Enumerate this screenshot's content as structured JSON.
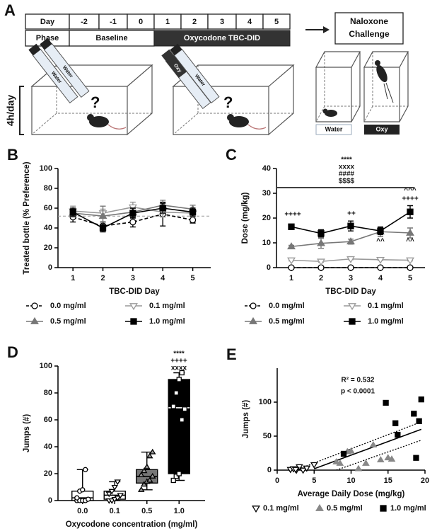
{
  "panel_a": {
    "label": "A",
    "day_header": "Day",
    "phase_header": "Phase",
    "days": [
      "-2",
      "-1",
      "0",
      "1",
      "2",
      "3",
      "4",
      "5"
    ],
    "baseline": "Baseline",
    "treatment": "Oxycodone TBC-DID",
    "challenge": [
      "Naloxone",
      "Challenge"
    ],
    "bottles": [
      "Water",
      "Water",
      "Water",
      "Oxy"
    ],
    "question": "?",
    "duration": "4h/day",
    "groups": [
      "Water",
      "Oxy"
    ]
  },
  "chart_data": [
    {
      "panel": "B",
      "type": "line",
      "y_label": "Treated bottle (% Preference)",
      "x_label": "TBC-DID Day",
      "x": [
        1,
        2,
        3,
        4,
        5
      ],
      "xlim": [
        0.5,
        5.6
      ],
      "xticks": [
        1,
        2,
        3,
        4,
        5
      ],
      "ylim": [
        0,
        100
      ],
      "yticks": [
        0,
        20,
        40,
        60,
        80,
        100
      ],
      "reference_line": 52,
      "series": [
        {
          "name": "0.0 mg/ml",
          "color": "#000000",
          "marker": "circle",
          "fill": "#ffffff",
          "dashed": true,
          "values": [
            51,
            42,
            46,
            54,
            48
          ],
          "errors": [
            5,
            4,
            5,
            12,
            3
          ]
        },
        {
          "name": "0.1 mg/ml",
          "color": "#999999",
          "marker": "tri-down",
          "fill": "#ffffff",
          "dashed": false,
          "values": [
            57,
            55,
            61,
            56,
            55
          ],
          "errors": [
            5,
            4,
            5,
            5,
            4
          ]
        },
        {
          "name": "0.5 mg/ml",
          "color": "#777777",
          "marker": "tri-up",
          "fill": "#777777",
          "dashed": false,
          "values": [
            55,
            52,
            56,
            63,
            59
          ],
          "errors": [
            4,
            10,
            4,
            5,
            4
          ]
        },
        {
          "name": "1.0 mg/ml",
          "color": "#000000",
          "marker": "square",
          "fill": "#000000",
          "dashed": false,
          "values": [
            56,
            40,
            55,
            60,
            56
          ],
          "errors": [
            4,
            4,
            5,
            5,
            4
          ]
        }
      ],
      "annotations": []
    },
    {
      "panel": "C",
      "type": "line",
      "y_label": "Dose (mg/kg)",
      "x_label": "TBC-DID Day",
      "x": [
        1,
        2,
        3,
        4,
        5
      ],
      "xlim": [
        0.5,
        5.5
      ],
      "xticks": [
        1,
        2,
        3,
        4,
        5
      ],
      "ylim": [
        0,
        40
      ],
      "yticks": [
        0,
        10,
        20,
        30,
        40
      ],
      "series": [
        {
          "name": "0.0 mg/ml",
          "color": "#000000",
          "marker": "circle",
          "fill": "#ffffff",
          "dashed": true,
          "values": [
            0,
            0,
            0,
            0,
            0
          ],
          "errors": [
            0,
            0,
            0,
            0,
            0
          ]
        },
        {
          "name": "0.1 mg/ml",
          "color": "#999999",
          "marker": "tri-down",
          "fill": "#ffffff",
          "dashed": false,
          "values": [
            3,
            2.5,
            3.5,
            3.2,
            3
          ],
          "errors": [
            0.3,
            0.3,
            0.3,
            0.3,
            0.3
          ]
        },
        {
          "name": "0.5 mg/ml",
          "color": "#777777",
          "marker": "tri-up",
          "fill": "#777777",
          "dashed": false,
          "values": [
            8.5,
            9.8,
            10.5,
            14.5,
            14
          ],
          "errors": [
            0.5,
            2,
            1,
            2,
            2
          ]
        },
        {
          "name": "1.0 mg/ml",
          "color": "#000000",
          "marker": "square",
          "fill": "#000000",
          "dashed": false,
          "values": [
            16.5,
            13.8,
            16.8,
            14.8,
            22.5
          ],
          "errors": [
            1,
            1.5,
            2,
            1.5,
            2.5
          ]
        }
      ],
      "annotations": [
        "****",
        "xxxx",
        "####",
        "$$$$",
        "++++",
        "++",
        "^^^",
        "++++",
        "^^",
        "^^"
      ]
    },
    {
      "panel": "D",
      "type": "box",
      "y_label": "Jumps (#)",
      "x_label": "Oxycodone concentration (mg/ml)",
      "categories": [
        "0.0",
        "0.1",
        "0.5",
        "1.0"
      ],
      "ylim": [
        0,
        100
      ],
      "yticks": [
        0,
        20,
        40,
        60,
        80,
        100
      ],
      "groups": [
        {
          "min": 0,
          "q1": 0,
          "median": 2,
          "q3": 7,
          "max": 23,
          "fill": "#ffffff",
          "marker": "circle",
          "marker_fill": "#ffffff",
          "points": [
            0,
            0,
            0,
            0,
            1,
            2,
            7,
            8,
            23
          ]
        },
        {
          "min": 0,
          "q1": 1,
          "median": 4,
          "q3": 7,
          "max": 14,
          "fill": "#ffffff",
          "marker": "tri-down",
          "marker_fill": "#ffffff",
          "points": [
            0,
            0,
            1,
            2,
            4,
            5,
            7,
            10,
            14
          ]
        },
        {
          "min": 8,
          "q1": 13,
          "median": 18,
          "q3": 23,
          "max": 36,
          "fill": "#777777",
          "marker": "tri-up",
          "marker_fill": "#999999",
          "points": [
            8,
            12,
            14,
            15,
            18,
            19,
            22,
            25,
            33,
            36
          ]
        },
        {
          "min": 15,
          "q1": 20,
          "median": 69,
          "q3": 90,
          "max": 95,
          "fill": "#000000",
          "marker": "square",
          "marker_fill": "#ffffff",
          "points": [
            15,
            18,
            20,
            60,
            68,
            70,
            80,
            90,
            95
          ]
        }
      ],
      "annotations": [
        "****",
        "++++",
        "xxxx"
      ]
    },
    {
      "panel": "E",
      "type": "scatter",
      "y_label": "Jumps (#)",
      "x_label": "Average Daily Dose (mg/kg)",
      "xlim": [
        0,
        20
      ],
      "xticks": [
        0,
        5,
        10,
        15,
        20
      ],
      "ylim": [
        0,
        150
      ],
      "yticks": [
        0,
        50,
        100
      ],
      "series": [
        {
          "name": "0.1 mg/ml",
          "color": "#000000",
          "marker": "tri-down",
          "fill": "#ffffff",
          "x": [
            1.8,
            2.2,
            2.6,
            3,
            3.5,
            4,
            5,
            2.5
          ],
          "values": [
            1,
            2,
            0,
            5,
            0,
            3,
            8,
            1
          ]
        },
        {
          "name": "0.5 mg/ml",
          "color": "#888888",
          "marker": "tri-up",
          "fill": "#888888",
          "x": [
            8,
            8.5,
            9.5,
            10,
            11,
            12,
            13,
            14,
            15,
            15.5
          ],
          "values": [
            12,
            10,
            27,
            28,
            2,
            10,
            37,
            15,
            18,
            16
          ]
        },
        {
          "name": "1.0 mg/ml",
          "color": "#000000",
          "marker": "square",
          "fill": "#000000",
          "x": [
            9,
            14.7,
            16,
            16.3,
            18.5,
            18.8,
            19.2,
            19.5
          ],
          "values": [
            24,
            99,
            69,
            52,
            83,
            18,
            72,
            104
          ]
        }
      ],
      "fit_line": {
        "x": [
          5,
          19.5
        ],
        "values": [
          2,
          60
        ]
      },
      "ci_upper": {
        "x": [
          2.5,
          19.5
        ],
        "values": [
          0,
          71
        ]
      },
      "ci_lower": {
        "x": [
          8,
          19.5
        ],
        "values": [
          0,
          44
        ]
      },
      "annotations": [
        "R² = 0.532",
        "p < 0.0001"
      ]
    }
  ]
}
